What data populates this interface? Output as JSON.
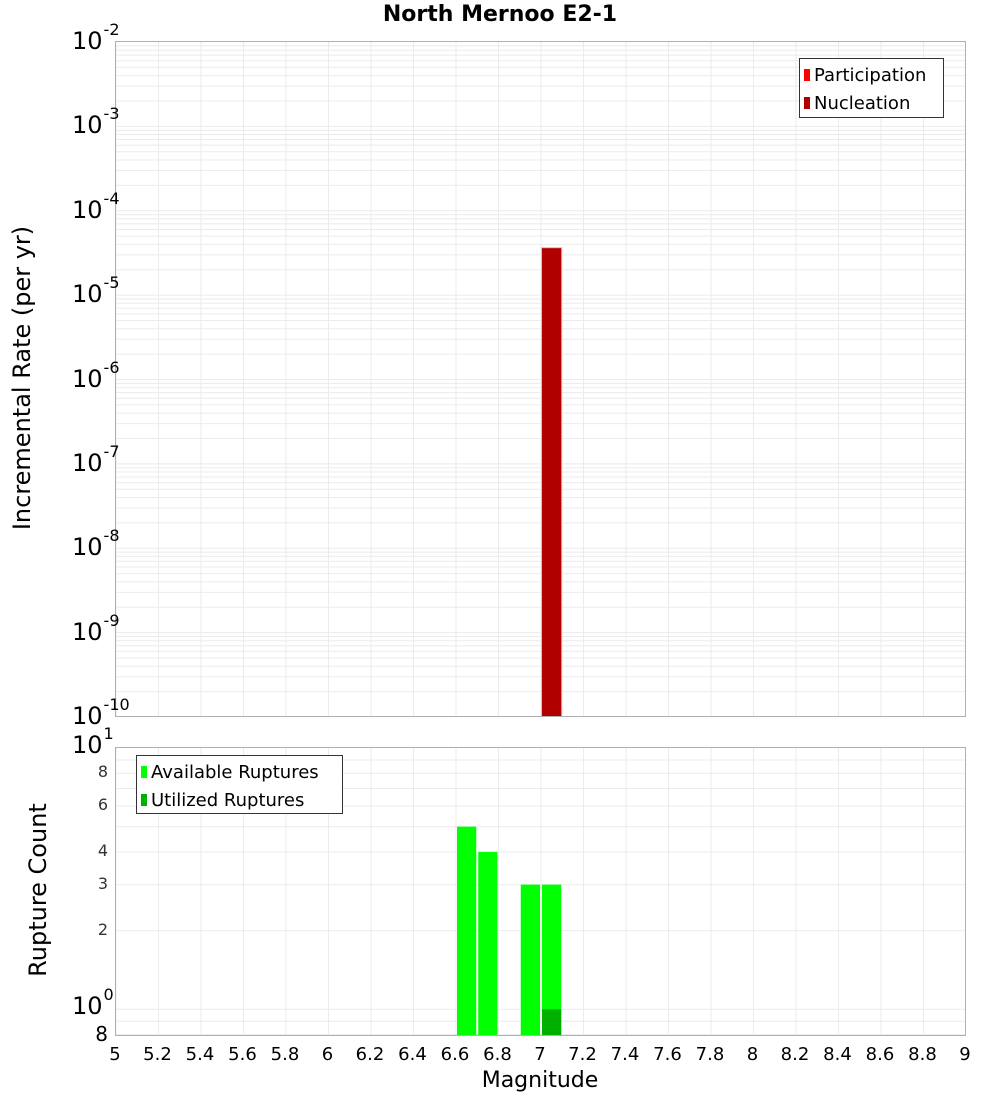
{
  "title": "North Mernoo E2-1",
  "top_chart": {
    "ylabel": "Incremental Rate (per yr)",
    "ytick_labels": [
      {
        "base": "10",
        "exp": "-2"
      },
      {
        "base": "10",
        "exp": "-3"
      },
      {
        "base": "10",
        "exp": "-4"
      },
      {
        "base": "10",
        "exp": "-5"
      },
      {
        "base": "10",
        "exp": "-6"
      },
      {
        "base": "10",
        "exp": "-7"
      },
      {
        "base": "10",
        "exp": "-8"
      },
      {
        "base": "10",
        "exp": "-9"
      },
      {
        "base": "10",
        "exp": "-10"
      }
    ],
    "legend": [
      {
        "label": "Participation",
        "color": "#ff0000"
      },
      {
        "label": "Nucleation",
        "color": "#b00000"
      }
    ]
  },
  "bottom_chart": {
    "ylabel": "Rupture Count",
    "ytick_major": [
      {
        "base": "10",
        "exp": "1"
      },
      {
        "base": "10",
        "exp": "0"
      }
    ],
    "ytick_minor": [
      "8",
      "6",
      "4",
      "3",
      "2"
    ],
    "ytick_bottom": "8",
    "legend": [
      {
        "label": "Available Ruptures",
        "color": "#00ff00"
      },
      {
        "label": "Utilized Ruptures",
        "color": "#00b000"
      }
    ]
  },
  "xaxis": {
    "label": "Magnitude",
    "ticks": [
      "5",
      "5.2",
      "5.4",
      "5.6",
      "5.8",
      "6",
      "6.2",
      "6.4",
      "6.6",
      "6.8",
      "7",
      "7.2",
      "7.4",
      "7.6",
      "7.8",
      "8",
      "8.2",
      "8.4",
      "8.6",
      "8.8",
      "9"
    ]
  },
  "chart_data": [
    {
      "type": "bar",
      "title": "North Mernoo E2-1",
      "xlabel": "Magnitude",
      "ylabel": "Incremental Rate (per yr)",
      "xlim": [
        5,
        9
      ],
      "ylim": [
        1e-10,
        0.01
      ],
      "yscale": "log",
      "grid": true,
      "legend_position": "upper right",
      "series": [
        {
          "name": "Participation",
          "color": "#ff0000",
          "x": [
            7.05
          ],
          "values": [
            3.7e-05
          ]
        },
        {
          "name": "Nucleation",
          "color": "#b00000",
          "x": [
            7.05
          ],
          "values": [
            3.6e-05
          ]
        }
      ]
    },
    {
      "type": "bar",
      "xlabel": "Magnitude",
      "ylabel": "Rupture Count",
      "xlim": [
        5,
        9
      ],
      "ylim": [
        0.79,
        10
      ],
      "yscale": "log",
      "grid": true,
      "legend_position": "upper left",
      "series": [
        {
          "name": "Available Ruptures",
          "color": "#00ff00",
          "x": [
            6.65,
            6.75,
            6.95,
            7.05
          ],
          "values": [
            5,
            4,
            3,
            3
          ]
        },
        {
          "name": "Utilized Ruptures",
          "color": "#00b000",
          "x": [
            7.05
          ],
          "values": [
            1
          ]
        }
      ]
    }
  ]
}
